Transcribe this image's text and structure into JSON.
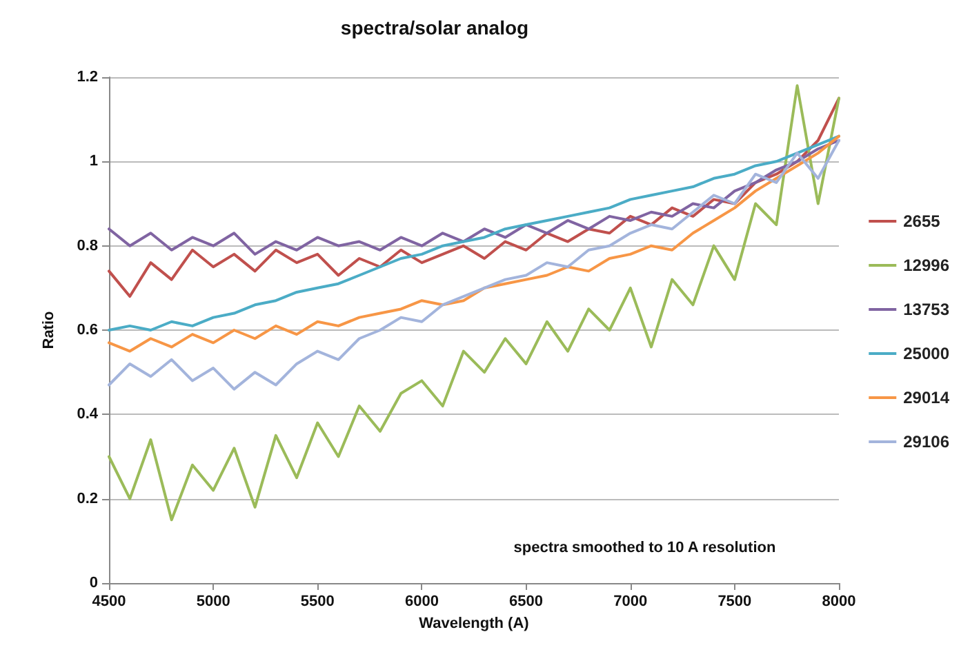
{
  "chart_data": {
    "type": "line",
    "title": "spectra/solar analog",
    "xlabel": "Wavelength (A)",
    "ylabel": "Ratio",
    "annotations": [
      "spectra smoothed to 10 A resolution"
    ],
    "x": [
      4500,
      4600,
      4700,
      4800,
      4900,
      5000,
      5100,
      5200,
      5300,
      5400,
      5500,
      5600,
      5700,
      5800,
      5900,
      6000,
      6100,
      6200,
      6300,
      6400,
      6500,
      6600,
      6700,
      6800,
      6900,
      7000,
      7100,
      7200,
      7300,
      7400,
      7500,
      7600,
      7700,
      7800,
      7900,
      8000
    ],
    "series": [
      {
        "name": "2655",
        "color": "#c0504d",
        "values": [
          0.74,
          0.68,
          0.76,
          0.72,
          0.79,
          0.75,
          0.78,
          0.74,
          0.79,
          0.76,
          0.78,
          0.73,
          0.77,
          0.75,
          0.79,
          0.76,
          0.78,
          0.8,
          0.77,
          0.81,
          0.79,
          0.83,
          0.81,
          0.84,
          0.83,
          0.87,
          0.85,
          0.89,
          0.87,
          0.91,
          0.9,
          0.95,
          0.97,
          1.0,
          1.05,
          1.15
        ]
      },
      {
        "name": "12996",
        "color": "#9bbb59",
        "values": [
          0.3,
          0.2,
          0.34,
          0.15,
          0.28,
          0.22,
          0.32,
          0.18,
          0.35,
          0.25,
          0.38,
          0.3,
          0.42,
          0.36,
          0.45,
          0.48,
          0.42,
          0.55,
          0.5,
          0.58,
          0.52,
          0.62,
          0.55,
          0.65,
          0.6,
          0.7,
          0.56,
          0.72,
          0.66,
          0.8,
          0.72,
          0.9,
          0.85,
          1.18,
          0.9,
          1.15
        ]
      },
      {
        "name": "13753",
        "color": "#8064a2",
        "values": [
          0.84,
          0.8,
          0.83,
          0.79,
          0.82,
          0.8,
          0.83,
          0.78,
          0.81,
          0.79,
          0.82,
          0.8,
          0.81,
          0.79,
          0.82,
          0.8,
          0.83,
          0.81,
          0.84,
          0.82,
          0.85,
          0.83,
          0.86,
          0.84,
          0.87,
          0.86,
          0.88,
          0.87,
          0.9,
          0.89,
          0.93,
          0.95,
          0.98,
          1.0,
          1.03,
          1.05
        ]
      },
      {
        "name": "25000",
        "color": "#4bacc6",
        "values": [
          0.6,
          0.61,
          0.6,
          0.62,
          0.61,
          0.63,
          0.64,
          0.66,
          0.67,
          0.69,
          0.7,
          0.71,
          0.73,
          0.75,
          0.77,
          0.78,
          0.8,
          0.81,
          0.82,
          0.84,
          0.85,
          0.86,
          0.87,
          0.88,
          0.89,
          0.91,
          0.92,
          0.93,
          0.94,
          0.96,
          0.97,
          0.99,
          1.0,
          1.02,
          1.04,
          1.06
        ]
      },
      {
        "name": "29014",
        "color": "#f79646",
        "values": [
          0.57,
          0.55,
          0.58,
          0.56,
          0.59,
          0.57,
          0.6,
          0.58,
          0.61,
          0.59,
          0.62,
          0.61,
          0.63,
          0.64,
          0.65,
          0.67,
          0.66,
          0.67,
          0.7,
          0.71,
          0.72,
          0.73,
          0.75,
          0.74,
          0.77,
          0.78,
          0.8,
          0.79,
          0.83,
          0.86,
          0.89,
          0.93,
          0.96,
          0.99,
          1.02,
          1.06
        ]
      },
      {
        "name": "29106",
        "color": "#a3b4dc",
        "values": [
          0.47,
          0.52,
          0.49,
          0.53,
          0.48,
          0.51,
          0.46,
          0.5,
          0.47,
          0.52,
          0.55,
          0.53,
          0.58,
          0.6,
          0.63,
          0.62,
          0.66,
          0.68,
          0.7,
          0.72,
          0.73,
          0.76,
          0.75,
          0.79,
          0.8,
          0.83,
          0.85,
          0.84,
          0.88,
          0.92,
          0.9,
          0.97,
          0.95,
          1.02,
          0.96,
          1.05
        ]
      }
    ],
    "xlim": [
      4500,
      8000
    ],
    "xticks": [
      4500,
      5000,
      5500,
      6000,
      6500,
      7000,
      7500,
      8000
    ],
    "ylim": [
      0,
      1.2
    ],
    "yticks": [
      0,
      0.2,
      0.4,
      0.6,
      0.8,
      1,
      1.2
    ],
    "grid": "y",
    "legend": "right",
    "marker": "none",
    "line_style": "solid"
  }
}
